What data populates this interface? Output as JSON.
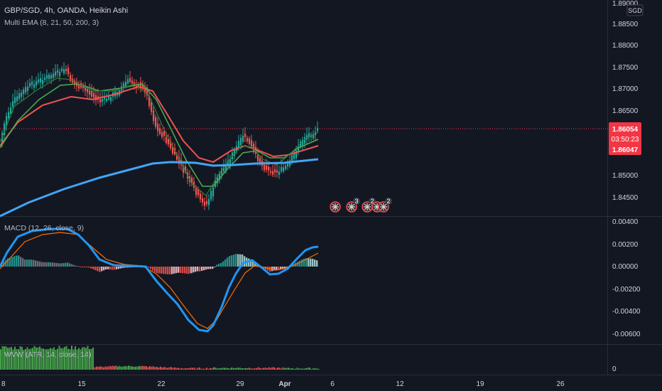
{
  "header": {
    "symbol_line": "GBP/SGD, 4h, OANDA, Heikin Ashi",
    "indicator_line": "Multi EMA (8, 21, 50, 200, 3)",
    "currency_badge": "SGD"
  },
  "macd_pane": {
    "label": "MACD (12, 26, close, 9)"
  },
  "wvw_pane": {
    "label": "WVW (ATR, 14, close, 14)"
  },
  "price_axis": {
    "top_value": "1.89000",
    "ticks": [
      "1.88500",
      "1.88000",
      "1.87500",
      "1.87000",
      "1.86500",
      "1.85000",
      "1.84500"
    ],
    "current_price": "1.86054",
    "countdown": "03:50:23",
    "second_price": "1.86047"
  },
  "macd_axis": {
    "ticks": [
      "0.00400",
      "0.00200",
      "0.00000",
      "-0.00200",
      "-0.00400",
      "-0.00600"
    ]
  },
  "wvw_axis": {
    "ticks": [
      "0"
    ]
  },
  "time_axis": {
    "ticks": [
      "8",
      "15",
      "22",
      "29",
      "Apr",
      "6",
      "12",
      "19",
      "26"
    ]
  },
  "events": {
    "counts": [
      "3",
      "2",
      "2"
    ]
  },
  "colors": {
    "background": "#131722",
    "bull": "#26a69a",
    "bear": "#ef5350",
    "ema8": "#2e7d32",
    "ema21": "#4caf50",
    "ema50": "#ef5350",
    "ema200": "#42a5f5",
    "macd": "#2196f3",
    "signal": "#ff6d00",
    "price_tag": "#f23645"
  },
  "chart_data": [
    {
      "type": "candlestick",
      "title": "GBP/SGD, 4h, OANDA, Heikin Ashi",
      "ylim": [
        1.8405,
        1.89
      ],
      "last_price": 1.86054,
      "series": [
        {
          "name": "Multi EMA (8, 21, 50, 200, 3)"
        }
      ]
    },
    {
      "type": "bar",
      "title": "MACD (12, 26, close, 9)",
      "ylim": [
        -0.0067,
        0.0048
      ]
    },
    {
      "type": "bar",
      "title": "WVW (ATR, 14, close, 14)"
    }
  ]
}
